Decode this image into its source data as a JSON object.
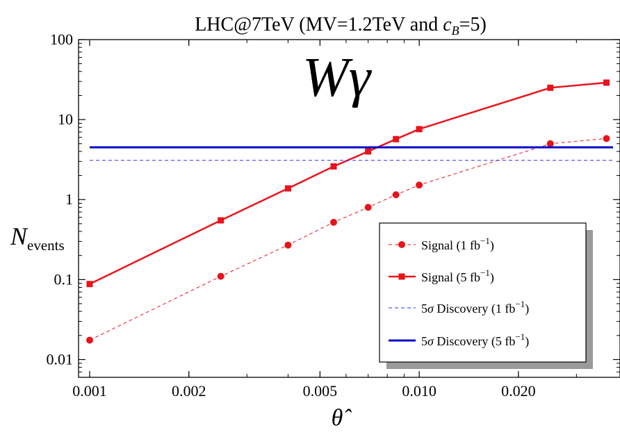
{
  "chart_data": {
    "type": "line",
    "title": "LHC@7TeV (MV=1.2TeV and ",
    "title_var": "c",
    "title_sub": "B",
    "title_tail": "=5)",
    "annotation": "Wγ",
    "xlabel": "θ̂",
    "ylabel_main": "N",
    "ylabel_sub": "events",
    "x_scale": "log",
    "y_scale": "log",
    "xlim": [
      0.001,
      0.038
    ],
    "ylim": [
      0.006,
      100
    ],
    "x_ticks": [
      {
        "value": 0.001,
        "label": "0.001"
      },
      {
        "value": 0.002,
        "label": "0.002"
      },
      {
        "value": 0.005,
        "label": "0.005"
      },
      {
        "value": 0.01,
        "label": "0.010"
      },
      {
        "value": 0.02,
        "label": "0.020"
      }
    ],
    "y_ticks": [
      {
        "value": 0.01,
        "label": "0.01"
      },
      {
        "value": 0.1,
        "label": "0.1"
      },
      {
        "value": 1,
        "label": "1"
      },
      {
        "value": 10,
        "label": "10"
      },
      {
        "value": 100,
        "label": "100"
      }
    ],
    "legend_position": "bottom-right",
    "series": [
      {
        "name": "Signal (1 fb",
        "name_sup": "−1",
        "name_tail": ")",
        "color": "#e8141c",
        "style": "dashed",
        "marker": "circle",
        "x": [
          0.001,
          0.0025,
          0.004,
          0.0055,
          0.007,
          0.0085,
          0.01,
          0.025,
          0.037
        ],
        "y": [
          0.0175,
          0.11,
          0.27,
          0.52,
          0.8,
          1.15,
          1.52,
          5.0,
          5.8
        ]
      },
      {
        "name": "Signal (5 fb",
        "name_sup": "−1",
        "name_tail": ")",
        "color": "#e8141c",
        "style": "solid",
        "marker": "square",
        "x": [
          0.001,
          0.0025,
          0.004,
          0.0055,
          0.007,
          0.0085,
          0.01,
          0.025,
          0.037
        ],
        "y": [
          0.088,
          0.55,
          1.38,
          2.6,
          4.0,
          5.7,
          7.6,
          25.0,
          29.0
        ]
      },
      {
        "name_pre": "5",
        "name_sigma": "σ",
        "name": " Discovery (1 fb",
        "name_sup": "−1",
        "name_tail": ")",
        "color": "#2b2bff",
        "style": "dashed",
        "marker": "none",
        "x": [
          0.001,
          0.037
        ],
        "y": [
          3.1,
          3.1
        ]
      },
      {
        "name_pre": "5",
        "name_sigma": "σ",
        "name": " Discovery (5 fb",
        "name_sup": "−1",
        "name_tail": ")",
        "color": "#0a0acc",
        "style": "solid",
        "marker": "none",
        "x": [
          0.001,
          0.037
        ],
        "y": [
          4.5,
          4.5
        ]
      }
    ]
  }
}
